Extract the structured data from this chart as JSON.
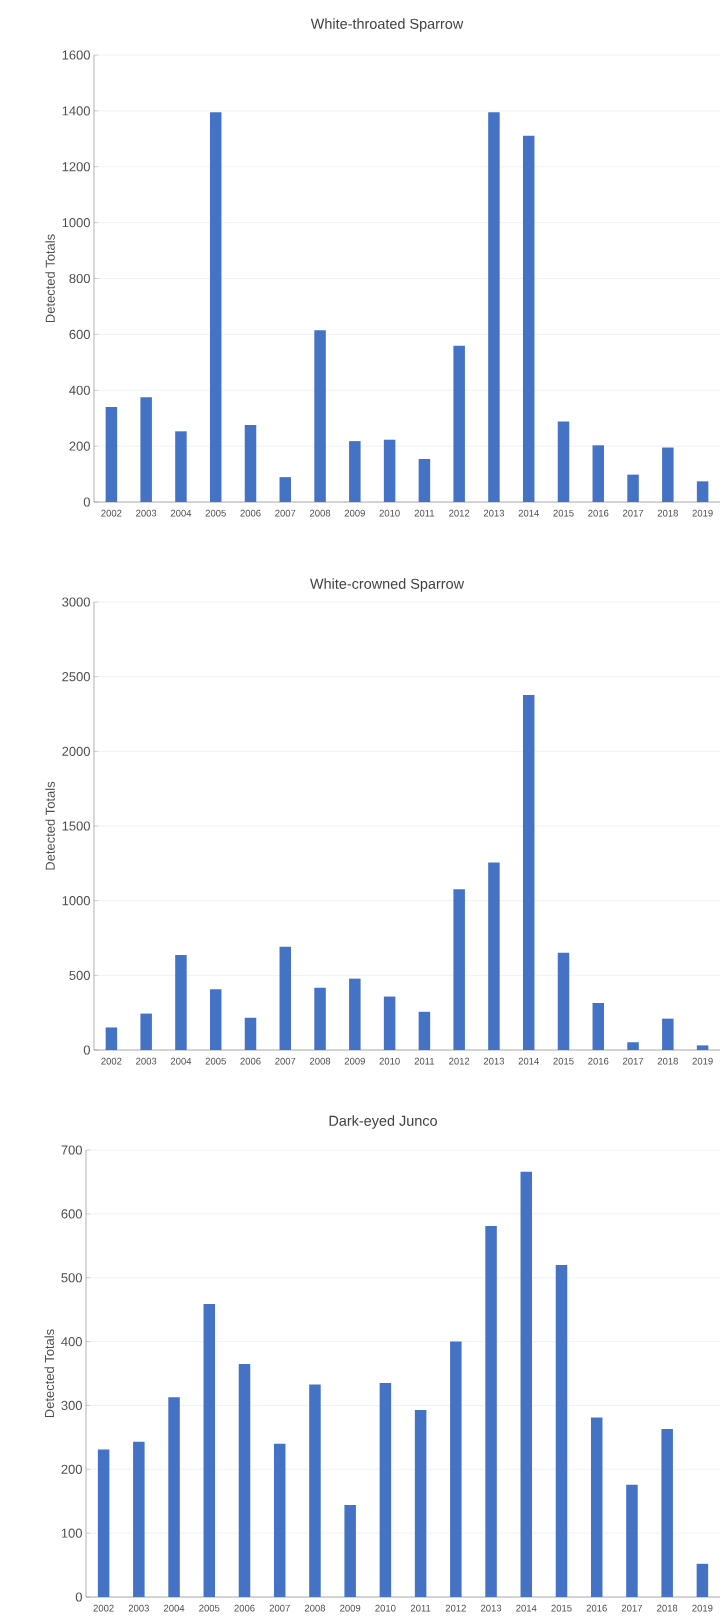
{
  "chart_data": [
    {
      "type": "bar",
      "title": "White-throated Sparrow",
      "ylabel": "Detected Totals",
      "categories": [
        "2002",
        "2003",
        "2004",
        "2005",
        "2006",
        "2007",
        "2008",
        "2009",
        "2010",
        "2011",
        "2012",
        "2013",
        "2014",
        "2015",
        "2016",
        "2017",
        "2018",
        "2019"
      ],
      "values": [
        340,
        375,
        253,
        1395,
        276,
        89,
        615,
        218,
        223,
        154,
        559,
        1395,
        1311,
        288,
        203,
        98,
        195,
        74
      ],
      "color": "#4472c4",
      "ylim": [
        0,
        1600
      ],
      "yticks": [
        0,
        200,
        400,
        600,
        800,
        1000,
        1200,
        1400,
        1600
      ],
      "grid": "y"
    },
    {
      "type": "bar",
      "title": "White-crowned Sparrow",
      "ylabel": "Detected Totals",
      "categories": [
        "2002",
        "2003",
        "2004",
        "2005",
        "2006",
        "2007",
        "2008",
        "2009",
        "2010",
        "2011",
        "2012",
        "2013",
        "2014",
        "2015",
        "2016",
        "2017",
        "2018",
        "2019"
      ],
      "values": [
        151,
        244,
        636,
        407,
        216,
        691,
        417,
        478,
        358,
        256,
        1077,
        1256,
        2377,
        651,
        315,
        52,
        210,
        31
      ],
      "color": "#4472c4",
      "ylim": [
        0,
        3000
      ],
      "yticks": [
        0,
        500,
        1000,
        1500,
        2000,
        2500,
        3000
      ],
      "grid": "y"
    },
    {
      "type": "bar",
      "title": "Dark-eyed Junco",
      "ylabel": "Detected Totals",
      "categories": [
        "2002",
        "2003",
        "2004",
        "2005",
        "2006",
        "2007",
        "2008",
        "2009",
        "2010",
        "2011",
        "2012",
        "2013",
        "2014",
        "2015",
        "2016",
        "2017",
        "2018",
        "2019"
      ],
      "values": [
        231,
        243,
        313,
        459,
        365,
        240,
        333,
        144,
        335,
        293,
        400,
        581,
        666,
        520,
        281,
        176,
        263,
        52
      ],
      "color": "#4472c4",
      "ylim": [
        0,
        700
      ],
      "yticks": [
        0,
        100,
        200,
        300,
        400,
        500,
        600,
        700
      ],
      "grid": "y"
    }
  ]
}
